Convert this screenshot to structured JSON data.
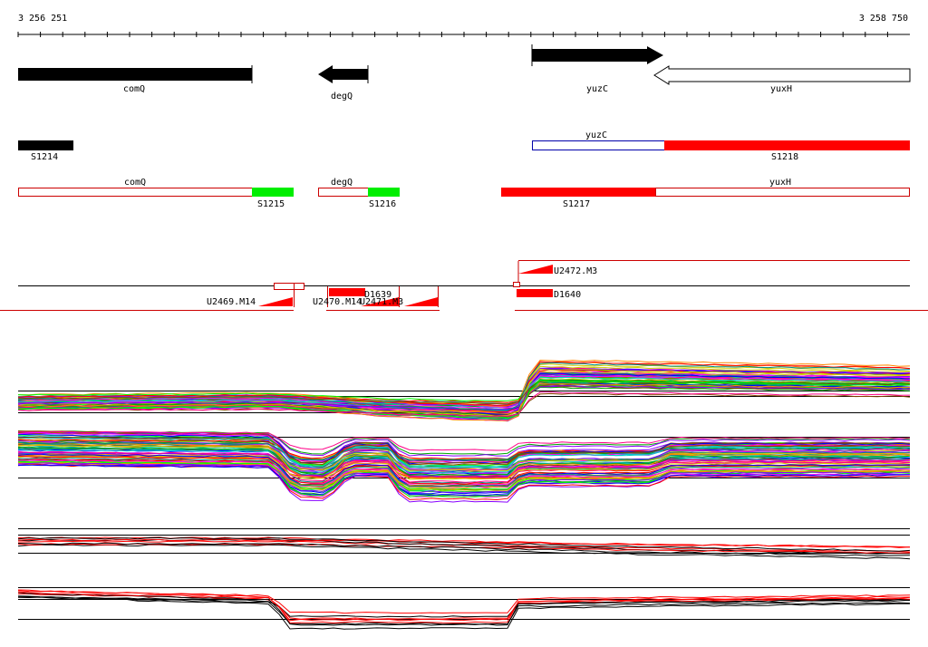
{
  "axis": {
    "start_label": "3 256 251",
    "end_label": "3 258 750"
  },
  "genes": [
    {
      "name": "comQ",
      "strand": "-",
      "fill": "#000000"
    },
    {
      "name": "degQ",
      "strand": "-",
      "fill": "#000000"
    },
    {
      "name": "yuzC",
      "strand": "+",
      "fill": "#000000"
    },
    {
      "name": "yuxH",
      "strand": "-",
      "fill": "#ffffff"
    }
  ],
  "segments": {
    "row1": [
      {
        "label": "S1214",
        "color": "#000000"
      },
      {
        "label": "yuzC",
        "color": "#0000aa"
      },
      {
        "label": "S1218",
        "color": "#ff0000"
      }
    ],
    "row2": [
      {
        "label": "comQ",
        "color": "#cc0000"
      },
      {
        "label": "S1215",
        "color": "#00ee00"
      },
      {
        "label": "degQ",
        "color": "#cc0000"
      },
      {
        "label": "S1216",
        "color": "#00ee00"
      },
      {
        "label": "S1217",
        "color": "#ff0000"
      },
      {
        "label": "yuxH",
        "color": "#cc0000"
      }
    ]
  },
  "features": {
    "labels": [
      "U2472.M3",
      "D1639",
      "D1640",
      "U2469.M14",
      "U2470.M14",
      "U2471.M3"
    ]
  },
  "colors": {
    "gene_track": "#000000",
    "feature": "#ff0000",
    "green": "#00ee00",
    "expression_palette": [
      "#ff0000",
      "#00aa00",
      "#0000ff",
      "#ff00ff",
      "#00cccc",
      "#cccc00",
      "#8800ff",
      "#ff8800",
      "#008888",
      "#884400",
      "#00ff00",
      "#ff0088"
    ]
  }
}
